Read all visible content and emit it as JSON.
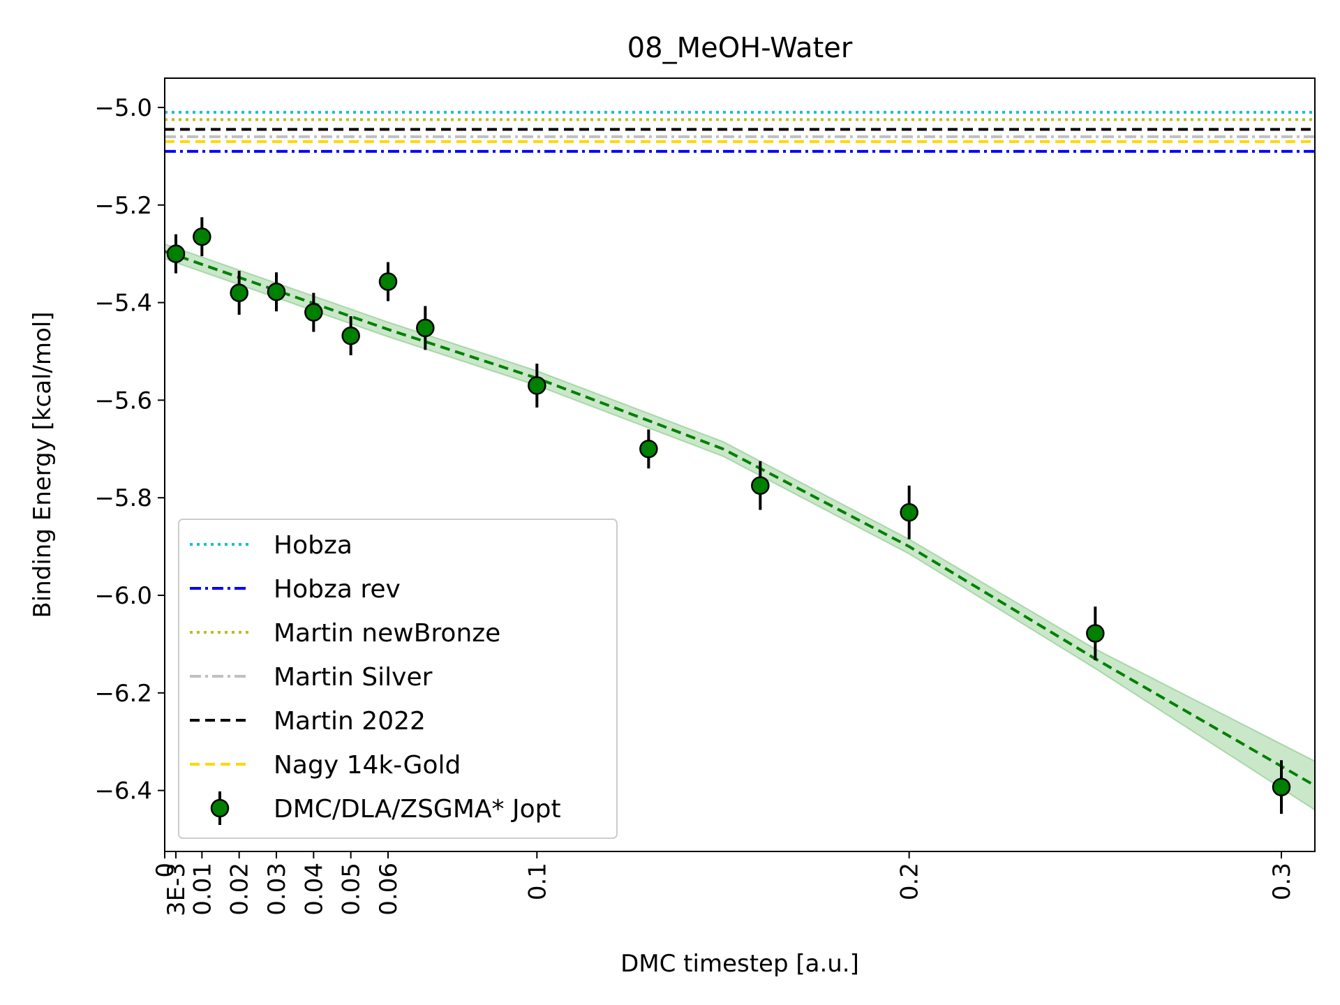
{
  "chart_data": {
    "type": "scatter",
    "title": "08_MeOH-Water",
    "xlabel": "DMC timestep [a.u.]",
    "ylabel": "Binding Energy [kcal/mol]",
    "xlim": [
      0,
      0.309
    ],
    "ylim": [
      -6.525,
      -4.94
    ],
    "x_ticks": [
      {
        "value": 0,
        "label": "0"
      },
      {
        "value": 0.003,
        "label": "3E-3"
      },
      {
        "value": 0.01,
        "label": "0.01"
      },
      {
        "value": 0.02,
        "label": "0.02"
      },
      {
        "value": 0.03,
        "label": "0.03"
      },
      {
        "value": 0.04,
        "label": "0.04"
      },
      {
        "value": 0.05,
        "label": "0.05"
      },
      {
        "value": 0.06,
        "label": "0.06"
      },
      {
        "value": 0.1,
        "label": "0.1"
      },
      {
        "value": 0.2,
        "label": "0.2"
      },
      {
        "value": 0.3,
        "label": "0.3"
      }
    ],
    "y_ticks": [
      {
        "value": -5.0,
        "label": "−5.0"
      },
      {
        "value": -5.2,
        "label": "−5.2"
      },
      {
        "value": -5.4,
        "label": "−5.4"
      },
      {
        "value": -5.6,
        "label": "−5.6"
      },
      {
        "value": -5.8,
        "label": "−5.8"
      },
      {
        "value": -6.0,
        "label": "−6.0"
      },
      {
        "value": -6.2,
        "label": "−6.2"
      },
      {
        "value": -6.4,
        "label": "−6.4"
      }
    ],
    "grid": false,
    "legend_position": "lower-left",
    "reference_lines": [
      {
        "name": "Hobza",
        "y": -5.01,
        "color": "#17becf",
        "style": "dotted"
      },
      {
        "name": "Hobza rev",
        "y": -5.09,
        "color": "#0000ff",
        "style": "dashdot"
      },
      {
        "name": "Martin newBronze",
        "y": -5.025,
        "color": "#bcbd22",
        "style": "dotted"
      },
      {
        "name": "Martin Silver",
        "y": -5.06,
        "color": "#c0c0c0",
        "style": "dashdot"
      },
      {
        "name": "Martin 2022",
        "y": -5.045,
        "color": "#000000",
        "style": "dashed"
      },
      {
        "name": "Nagy 14k-Gold",
        "y": -5.07,
        "color": "#ffd700",
        "style": "dashed"
      }
    ],
    "series": [
      {
        "name": "DMC/DLA/ZSGMA* Jopt",
        "color": "#008000",
        "points": [
          {
            "x": 0.003,
            "y": -5.3,
            "err": 0.04
          },
          {
            "x": 0.01,
            "y": -5.265,
            "err": 0.04
          },
          {
            "x": 0.02,
            "y": -5.38,
            "err": 0.045
          },
          {
            "x": 0.03,
            "y": -5.378,
            "err": 0.04
          },
          {
            "x": 0.04,
            "y": -5.42,
            "err": 0.04
          },
          {
            "x": 0.05,
            "y": -5.468,
            "err": 0.04
          },
          {
            "x": 0.06,
            "y": -5.357,
            "err": 0.04
          },
          {
            "x": 0.07,
            "y": -5.452,
            "err": 0.045
          },
          {
            "x": 0.1,
            "y": -5.57,
            "err": 0.045
          },
          {
            "x": 0.13,
            "y": -5.7,
            "err": 0.04
          },
          {
            "x": 0.16,
            "y": -5.775,
            "err": 0.05
          },
          {
            "x": 0.2,
            "y": -5.83,
            "err": 0.055
          },
          {
            "x": 0.25,
            "y": -6.078,
            "err": 0.055
          },
          {
            "x": 0.3,
            "y": -6.393,
            "err": 0.055
          }
        ]
      }
    ],
    "fit": {
      "color": "#008000",
      "band_color": "#2ca02c",
      "points": [
        {
          "x": 0,
          "y": -5.295,
          "lo": -5.31,
          "hi": -5.28
        },
        {
          "x": 0.03,
          "y": -5.375,
          "lo": -5.39,
          "hi": -5.36
        },
        {
          "x": 0.06,
          "y": -5.455,
          "lo": -5.47,
          "hi": -5.44
        },
        {
          "x": 0.1,
          "y": -5.555,
          "lo": -5.57,
          "hi": -5.54
        },
        {
          "x": 0.15,
          "y": -5.7,
          "lo": -5.715,
          "hi": -5.685
        },
        {
          "x": 0.2,
          "y": -5.9,
          "lo": -5.915,
          "hi": -5.885
        },
        {
          "x": 0.25,
          "y": -6.13,
          "lo": -6.15,
          "hi": -6.11
        },
        {
          "x": 0.309,
          "y": -6.39,
          "lo": -6.44,
          "hi": -6.34
        }
      ]
    }
  }
}
